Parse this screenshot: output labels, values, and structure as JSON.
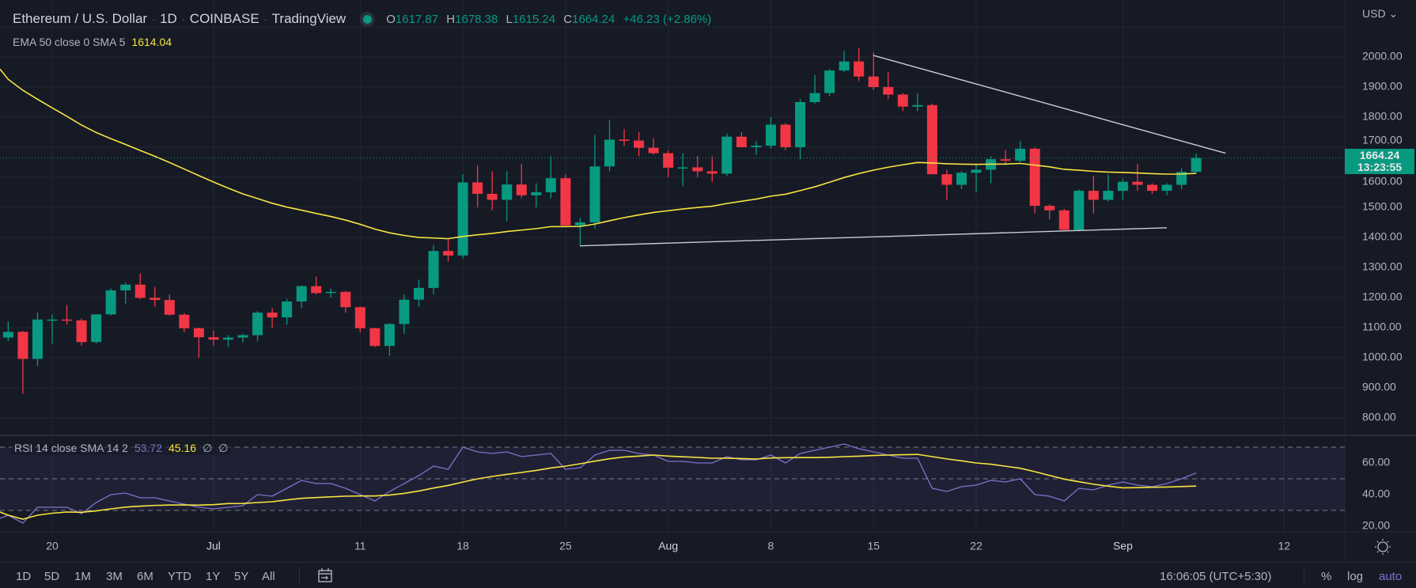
{
  "header": {
    "symbol": "Ethereum / U.S. Dollar",
    "interval": "1D",
    "exchange": "COINBASE",
    "source": "TradingView",
    "sep": "·",
    "o_label": "O",
    "o_value": "1617.87",
    "h_label": "H",
    "h_value": "1678.38",
    "l_label": "L",
    "l_value": "1615.24",
    "c_label": "C",
    "c_value": "1664.24",
    "change": "+46.23 (+2.86%)"
  },
  "ema_legend": {
    "label": "EMA 50 close 0 SMA 5",
    "value": "1614.04"
  },
  "rsi_legend": {
    "label": "RSI 14 close SMA 14 2",
    "rsi_value": "53.72",
    "sma_value": "45.16",
    "na1": "∅",
    "na2": "∅"
  },
  "price_axis": {
    "currency": "USD",
    "current_price": "1664.24",
    "countdown": "13:23:55"
  },
  "toolbar": {
    "ranges": [
      "1D",
      "5D",
      "1M",
      "3M",
      "6M",
      "YTD",
      "1Y",
      "5Y",
      "All"
    ],
    "time": "16:06:05 (UTC+5:30)",
    "percent": "%",
    "log": "log",
    "auto": "auto"
  },
  "colors": {
    "up": "#089981",
    "down": "#f23645",
    "ema": "#f7e540",
    "rsi": "#7e73c9",
    "bg": "#161a25",
    "grid": "#232734"
  },
  "chart_data": {
    "type": "candlestick",
    "title": "Ethereum / U.S. Dollar · 1D · COINBASE",
    "price_ticks": [
      2000,
      1900,
      1800,
      1700,
      1600,
      1500,
      1400,
      1300,
      1200,
      1100,
      1000,
      900,
      800
    ],
    "price_tick_labels": [
      "2000.00",
      "1900.00",
      "1800.00",
      "1700.00",
      "1600.00",
      "1500.00",
      "1400.00",
      "1300.00",
      "1200.00",
      "1100.00",
      "1000.00",
      "900.00",
      "800.00"
    ],
    "x_ticks": [
      {
        "label": "20",
        "day": 0
      },
      {
        "label": "Jul",
        "day": 11
      },
      {
        "label": "11",
        "day": 21
      },
      {
        "label": "18",
        "day": 28
      },
      {
        "label": "25",
        "day": 35
      },
      {
        "label": "Aug",
        "day": 42
      },
      {
        "label": "8",
        "day": 49
      },
      {
        "label": "15",
        "day": 56
      },
      {
        "label": "22",
        "day": 63
      },
      {
        "label": "Sep",
        "day": 73
      },
      {
        "label": "12",
        "day": 84
      }
    ],
    "first_candle_day": -3,
    "ohlc": [
      [
        1067,
        1120,
        1055,
        1086
      ],
      [
        1086,
        1089,
        880,
        996
      ],
      [
        996,
        1150,
        972,
        1127
      ],
      [
        1127,
        1143,
        1047,
        1127
      ],
      [
        1127,
        1175,
        1110,
        1124
      ],
      [
        1124,
        1130,
        1040,
        1052
      ],
      [
        1052,
        1145,
        1048,
        1144
      ],
      [
        1144,
        1230,
        1140,
        1224
      ],
      [
        1224,
        1250,
        1180,
        1243
      ],
      [
        1243,
        1280,
        1195,
        1199
      ],
      [
        1199,
        1235,
        1170,
        1192
      ],
      [
        1192,
        1210,
        1140,
        1143
      ],
      [
        1143,
        1148,
        1085,
        1098
      ],
      [
        1098,
        1100,
        1000,
        1068
      ],
      [
        1068,
        1090,
        1040,
        1060
      ],
      [
        1060,
        1075,
        1035,
        1067
      ],
      [
        1067,
        1080,
        1050,
        1075
      ],
      [
        1075,
        1155,
        1055,
        1150
      ],
      [
        1150,
        1165,
        1100,
        1134
      ],
      [
        1134,
        1195,
        1110,
        1187
      ],
      [
        1187,
        1240,
        1165,
        1238
      ],
      [
        1238,
        1270,
        1210,
        1215
      ],
      [
        1215,
        1230,
        1200,
        1219
      ],
      [
        1219,
        1222,
        1150,
        1168
      ],
      [
        1168,
        1170,
        1085,
        1098
      ],
      [
        1098,
        1100,
        1035,
        1039
      ],
      [
        1039,
        1115,
        1006,
        1112
      ],
      [
        1112,
        1210,
        1080,
        1193
      ],
      [
        1193,
        1260,
        1170,
        1232
      ],
      [
        1232,
        1375,
        1210,
        1355
      ],
      [
        1355,
        1395,
        1320,
        1340
      ],
      [
        1340,
        1610,
        1330,
        1583
      ],
      [
        1583,
        1640,
        1500,
        1545
      ],
      [
        1545,
        1620,
        1490,
        1525
      ],
      [
        1525,
        1620,
        1455,
        1576
      ],
      [
        1576,
        1645,
        1530,
        1540
      ],
      [
        1540,
        1580,
        1500,
        1550
      ],
      [
        1550,
        1670,
        1530,
        1597
      ],
      [
        1597,
        1610,
        1440,
        1440
      ],
      [
        1440,
        1465,
        1370,
        1450
      ],
      [
        1450,
        1740,
        1430,
        1636
      ],
      [
        1636,
        1790,
        1620,
        1725
      ],
      [
        1725,
        1760,
        1705,
        1722
      ],
      [
        1722,
        1750,
        1670,
        1698
      ],
      [
        1698,
        1730,
        1675,
        1680
      ],
      [
        1680,
        1690,
        1600,
        1632
      ],
      [
        1632,
        1680,
        1570,
        1633
      ],
      [
        1633,
        1670,
        1600,
        1620
      ],
      [
        1620,
        1670,
        1585,
        1612
      ],
      [
        1612,
        1745,
        1605,
        1735
      ],
      [
        1735,
        1750,
        1700,
        1700
      ],
      [
        1700,
        1720,
        1675,
        1705
      ],
      [
        1705,
        1800,
        1695,
        1775
      ],
      [
        1775,
        1780,
        1690,
        1700
      ],
      [
        1700,
        1860,
        1660,
        1850
      ],
      [
        1850,
        1940,
        1845,
        1880
      ],
      [
        1880,
        1960,
        1870,
        1955
      ],
      [
        1955,
        2020,
        1950,
        1985
      ],
      [
        1985,
        2030,
        1920,
        1935
      ],
      [
        1935,
        2015,
        1890,
        1900
      ],
      [
        1900,
        1950,
        1860,
        1875
      ],
      [
        1875,
        1880,
        1820,
        1835
      ],
      [
        1835,
        1880,
        1820,
        1840
      ],
      [
        1840,
        1845,
        1610,
        1610
      ],
      [
        1610,
        1625,
        1525,
        1575
      ],
      [
        1575,
        1620,
        1560,
        1615
      ],
      [
        1615,
        1640,
        1550,
        1625
      ],
      [
        1625,
        1670,
        1580,
        1660
      ],
      [
        1660,
        1690,
        1640,
        1655
      ],
      [
        1655,
        1720,
        1650,
        1695
      ],
      [
        1695,
        1700,
        1480,
        1505
      ],
      [
        1505,
        1510,
        1460,
        1490
      ],
      [
        1490,
        1495,
        1420,
        1425
      ],
      [
        1425,
        1560,
        1420,
        1555
      ],
      [
        1555,
        1605,
        1480,
        1525
      ],
      [
        1525,
        1610,
        1520,
        1555
      ],
      [
        1555,
        1595,
        1525,
        1585
      ],
      [
        1585,
        1645,
        1555,
        1575
      ],
      [
        1575,
        1580,
        1545,
        1555
      ],
      [
        1555,
        1580,
        1540,
        1575
      ],
      [
        1575,
        1630,
        1560,
        1618
      ],
      [
        1617.87,
        1678.38,
        1615.24,
        1664.24
      ]
    ],
    "ema_period": 50,
    "ema_seed": 1960,
    "trendlines": [
      {
        "name": "resistance",
        "from": {
          "day": 56,
          "price": 2005
        },
        "to": {
          "day": 80,
          "price": 1680
        }
      },
      {
        "name": "support",
        "from": {
          "day": 36,
          "price": 1372
        },
        "to": {
          "day": 76,
          "price": 1432
        }
      }
    ],
    "rsi": {
      "ticks": [
        60,
        40,
        20
      ],
      "tick_labels": [
        "60.00",
        "40.00",
        "20.00"
      ],
      "upper_band": 70,
      "middle": 50,
      "lower_band": 30,
      "sma_period": 14,
      "values": [
        27,
        22,
        32,
        32,
        32,
        28,
        35,
        40,
        41,
        38,
        38,
        36,
        34,
        32,
        31,
        32,
        33,
        40,
        39,
        44,
        49,
        47,
        47,
        44,
        40,
        36,
        42,
        47,
        52,
        58,
        56,
        70,
        67,
        66,
        67,
        64,
        65,
        66,
        56,
        57,
        65,
        68,
        68,
        66,
        65,
        61,
        61,
        60,
        60,
        64,
        62,
        62,
        65,
        60,
        66,
        68,
        70,
        72,
        69,
        67,
        65,
        63,
        63,
        44,
        42,
        45,
        46,
        49,
        48,
        50,
        40,
        39,
        36,
        44,
        43,
        46,
        48,
        46,
        45,
        47,
        50,
        53.72
      ]
    }
  }
}
